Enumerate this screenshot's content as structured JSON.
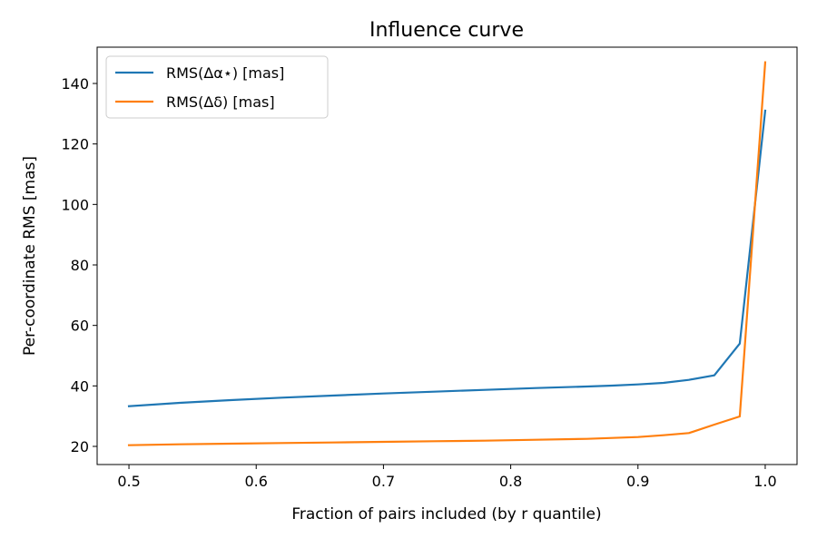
{
  "chart_data": {
    "type": "line",
    "title": "Influence curve",
    "xlabel": "Fraction of pairs included (by r quantile)",
    "ylabel": "Per-coordinate RMS [mas]",
    "xlim": [
      0.475,
      1.025
    ],
    "ylim": [
      14,
      152
    ],
    "x_ticks": [
      0.5,
      0.6,
      0.7,
      0.8,
      0.9,
      1.0
    ],
    "x_tick_labels": [
      "0.5",
      "0.6",
      "0.7",
      "0.8",
      "0.9",
      "1.0"
    ],
    "y_ticks": [
      20,
      40,
      60,
      80,
      100,
      120,
      140
    ],
    "y_tick_labels": [
      "20",
      "40",
      "60",
      "80",
      "100",
      "120",
      "140"
    ],
    "grid": false,
    "legend_position": "top-left",
    "series": [
      {
        "name": "RMS(Δα⋆) [mas]",
        "color": "#1f77b4",
        "x": [
          0.5,
          0.54,
          0.58,
          0.62,
          0.66,
          0.7,
          0.74,
          0.78,
          0.82,
          0.86,
          0.88,
          0.9,
          0.92,
          0.94,
          0.96,
          0.98,
          1.0
        ],
        "y": [
          33.3,
          34.4,
          35.3,
          36.1,
          36.8,
          37.5,
          38.1,
          38.7,
          39.3,
          39.8,
          40.1,
          40.5,
          41.0,
          42.0,
          43.5,
          54.0,
          131.0
        ]
      },
      {
        "name": "RMS(Δδ) [mas]",
        "color": "#ff7f0e",
        "x": [
          0.5,
          0.54,
          0.58,
          0.62,
          0.66,
          0.7,
          0.74,
          0.78,
          0.82,
          0.86,
          0.88,
          0.9,
          0.92,
          0.94,
          0.96,
          0.98,
          1.0
        ],
        "y": [
          20.4,
          20.7,
          20.9,
          21.1,
          21.3,
          21.5,
          21.7,
          21.9,
          22.2,
          22.5,
          22.8,
          23.1,
          23.7,
          24.4,
          27.2,
          29.9,
          147.0
        ]
      }
    ]
  }
}
